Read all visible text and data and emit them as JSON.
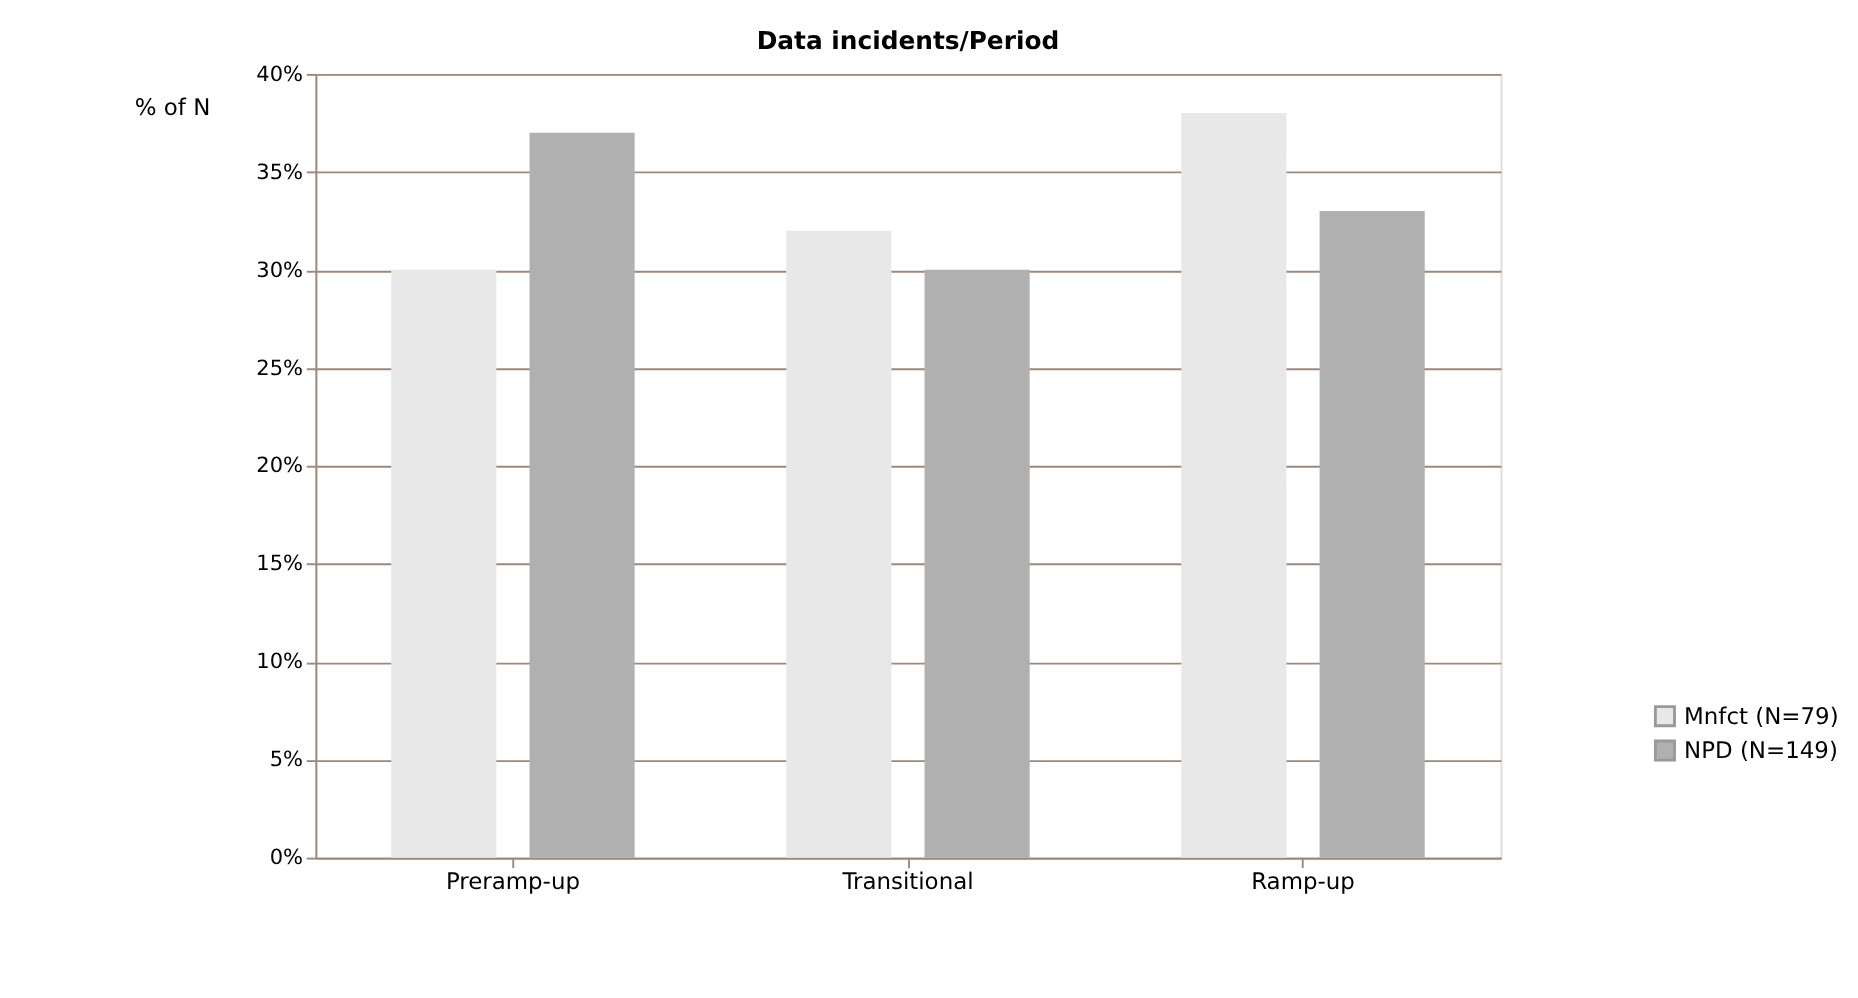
{
  "chart_data": {
    "type": "bar",
    "title": "Data incidents/Period",
    "ylabel": "% of N",
    "categories": [
      "Preramp-up",
      "Transitional",
      "Ramp-up"
    ],
    "series": [
      {
        "name": "Mnfct (N=79)",
        "color": "#e8e8e8",
        "values": [
          30,
          32,
          38
        ]
      },
      {
        "name": "NPD (N=149)",
        "color": "#b0b0b0",
        "values": [
          37,
          30,
          33
        ]
      }
    ],
    "ylim": [
      0,
      40
    ],
    "yticks": [
      {
        "value": 0,
        "label": "0%"
      },
      {
        "value": 5,
        "label": "5%"
      },
      {
        "value": 10,
        "label": "10%"
      },
      {
        "value": 15,
        "label": "15%"
      },
      {
        "value": 20,
        "label": "20%"
      },
      {
        "value": 25,
        "label": "25%"
      },
      {
        "value": 30,
        "label": "30%"
      },
      {
        "value": 35,
        "label": "35%"
      },
      {
        "value": 40,
        "label": "40%"
      }
    ],
    "grid": "y",
    "legend": "bottom right"
  }
}
